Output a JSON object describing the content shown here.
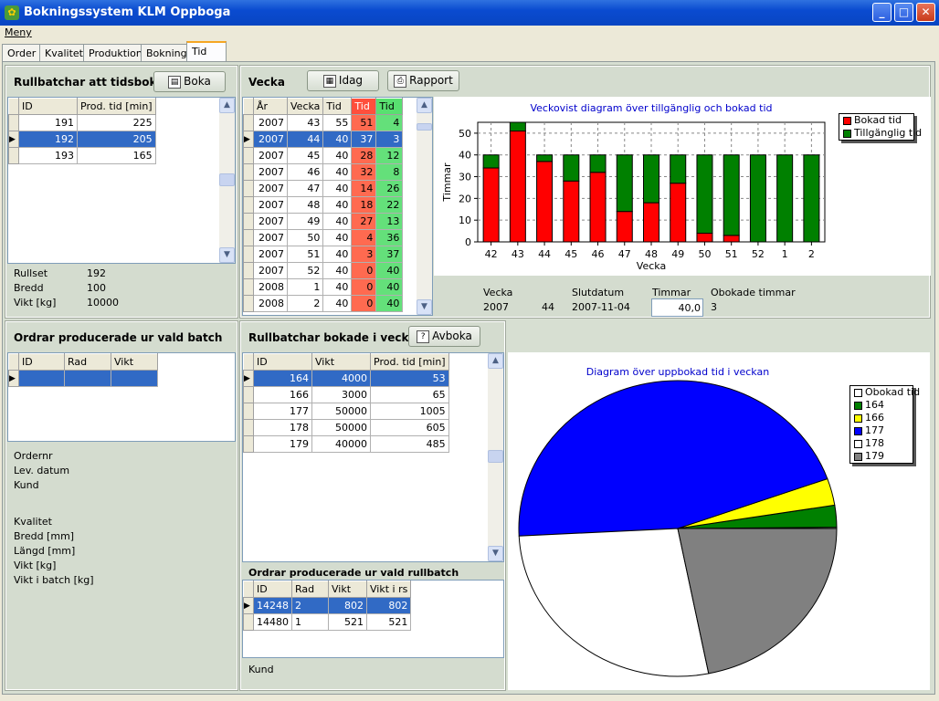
{
  "window": {
    "title": "Bokningssystem KLM Oppboga"
  },
  "menu": {
    "label": "Meny"
  },
  "tabs": [
    {
      "label": "Order"
    },
    {
      "label": "Kvalitet"
    },
    {
      "label": "Produktion"
    },
    {
      "label": "Bokning"
    },
    {
      "label": "Tid"
    }
  ],
  "left_top": {
    "title": "Rullbatchar att tidsboka",
    "boka_label": "Boka",
    "columns": [
      "ID",
      "Prod. tid [min]"
    ],
    "rows": [
      [
        "191",
        "225"
      ],
      [
        "192",
        "205"
      ],
      [
        "193",
        "165"
      ]
    ],
    "selected_row": 1,
    "details": [
      {
        "label": "Rullset",
        "value": "192"
      },
      {
        "label": "Bredd",
        "value": "100"
      },
      {
        "label": "Vikt [kg]",
        "value": "10000"
      }
    ]
  },
  "left_bottom": {
    "title": "Ordrar producerade ur vald batch",
    "columns": [
      "ID",
      "Rad",
      "Vikt"
    ],
    "fields": [
      "Ordernr",
      "Lev. datum",
      "Kund",
      "",
      "Kvalitet",
      "Bredd [mm]",
      "Längd [mm]",
      "Vikt [kg]",
      "Vikt i batch [kg]"
    ]
  },
  "vecka": {
    "title": "Vecka",
    "idag_label": "Idag",
    "rapport_label": "Rapport",
    "columns": [
      "År",
      "Vecka",
      "Tid",
      "Tid",
      "Tid"
    ],
    "rows": [
      [
        "2007",
        "43",
        "55",
        "51",
        "4"
      ],
      [
        "2007",
        "44",
        "40",
        "37",
        "3"
      ],
      [
        "2007",
        "45",
        "40",
        "28",
        "12"
      ],
      [
        "2007",
        "46",
        "40",
        "32",
        "8"
      ],
      [
        "2007",
        "47",
        "40",
        "14",
        "26"
      ],
      [
        "2007",
        "48",
        "40",
        "18",
        "22"
      ],
      [
        "2007",
        "49",
        "40",
        "27",
        "13"
      ],
      [
        "2007",
        "50",
        "40",
        "4",
        "36"
      ],
      [
        "2007",
        "51",
        "40",
        "3",
        "37"
      ],
      [
        "2007",
        "52",
        "40",
        "0",
        "40"
      ],
      [
        "2008",
        "1",
        "40",
        "0",
        "40"
      ],
      [
        "2008",
        "2",
        "40",
        "0",
        "40"
      ]
    ],
    "selected_row": 1,
    "summary": {
      "vecka_label": "Vecka",
      "year": "2007",
      "week": "44",
      "slutdatum_label": "Slutdatum",
      "slutdatum": "2007-11-04",
      "timmar_label": "Timmar",
      "timmar": "40,0",
      "obokade_label": "Obokade timmar",
      "obokade": "3"
    }
  },
  "chart_data": [
    {
      "type": "bar",
      "title": "Veckovist diagram över tillgänglig och bokad tid",
      "xlabel": "Vecka",
      "ylabel": "Timmar",
      "categories": [
        "42",
        "43",
        "44",
        "45",
        "46",
        "47",
        "48",
        "49",
        "50",
        "51",
        "52",
        "1",
        "2"
      ],
      "ylim": [
        0,
        55
      ],
      "yticks": [
        0,
        10,
        20,
        30,
        40,
        50
      ],
      "stacked": true,
      "grid": true,
      "legend": "top-right",
      "series": [
        {
          "name": "Bokad tid",
          "color": "#ff0000",
          "values": [
            34,
            51,
            37,
            28,
            32,
            14,
            18,
            27,
            4,
            3,
            0,
            0,
            0
          ]
        },
        {
          "name": "Tillgänglig tid",
          "color": "#008000",
          "values": [
            6,
            4,
            3,
            12,
            8,
            26,
            22,
            13,
            36,
            37,
            40,
            40,
            40
          ]
        }
      ]
    },
    {
      "type": "pie",
      "title": "Diagram över uppbokad tid i veckan",
      "legend": "top-right",
      "slices": [
        {
          "name": "Obokad tid",
          "value": 3,
          "color": "#ffffff"
        },
        {
          "name": "164",
          "value": 53,
          "color": "#008000"
        },
        {
          "name": "166",
          "value": 65,
          "color": "#ffff00"
        },
        {
          "name": "177",
          "value": 1005,
          "color": "#0000ff"
        },
        {
          "name": "178",
          "value": 605,
          "color": "#ffffff"
        },
        {
          "name": "179",
          "value": 485,
          "color": "#808080"
        }
      ]
    }
  ],
  "booked": {
    "title": "Rullbatchar bokade i veckan",
    "avboka_label": "Avboka",
    "columns": [
      "ID",
      "Vikt",
      "Prod. tid [min]"
    ],
    "rows": [
      [
        "164",
        "4000",
        "53"
      ],
      [
        "166",
        "3000",
        "65"
      ],
      [
        "177",
        "50000",
        "1005"
      ],
      [
        "178",
        "50000",
        "605"
      ],
      [
        "179",
        "40000",
        "485"
      ]
    ],
    "selected_row": 0
  },
  "rullbatch_orders": {
    "title": "Ordrar producerade ur vald rullbatch",
    "columns": [
      "ID",
      "Rad",
      "Vikt",
      "Vikt i rs"
    ],
    "rows": [
      [
        "14248",
        "2",
        "802",
        "802"
      ],
      [
        "14480",
        "1",
        "521",
        "521"
      ]
    ],
    "selected_row": 0,
    "kund_label": "Kund"
  }
}
